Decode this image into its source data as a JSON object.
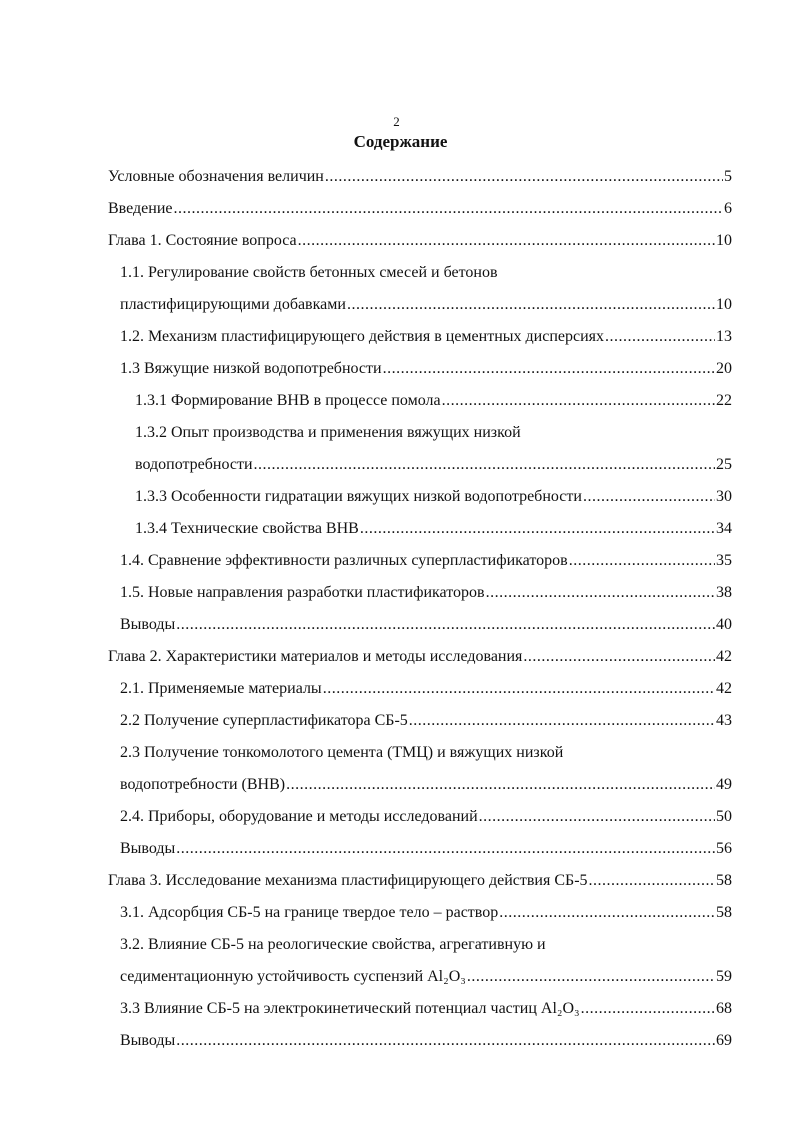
{
  "page_number": "2",
  "title": "Содержание",
  "entries": [
    {
      "level": 0,
      "lines": [
        "Условные обозначения величин"
      ],
      "page": "5"
    },
    {
      "level": 0,
      "lines": [
        "Введение"
      ],
      "page": "6"
    },
    {
      "level": 0,
      "lines": [
        "Глава 1. Состояние вопроса"
      ],
      "page": "10"
    },
    {
      "level": 1,
      "lines": [
        "1.1. Регулирование свойств бетонных смесей и бетонов",
        "пластифицирующими добавками"
      ],
      "page": "10"
    },
    {
      "level": 1,
      "lines": [
        "1.2. Механизм пластифицирующего действия в цементных дисперсиях"
      ],
      "page": "13"
    },
    {
      "level": 1,
      "lines": [
        "1.3 Вяжущие низкой водопотребности"
      ],
      "page": "20"
    },
    {
      "level": 2,
      "lines": [
        "1.3.1 Формирование ВНВ в процессе помола"
      ],
      "page": "22"
    },
    {
      "level": 2,
      "lines": [
        "1.3.2 Опыт производства и применения вяжущих низкой",
        "водопотребности"
      ],
      "page": "25"
    },
    {
      "level": 2,
      "lines": [
        "1.3.3 Особенности гидратации вяжущих низкой водопотребности"
      ],
      "page": "30"
    },
    {
      "level": 2,
      "lines": [
        "1.3.4 Технические свойства ВНВ"
      ],
      "page": "34"
    },
    {
      "level": 1,
      "lines": [
        "1.4. Сравнение эффективности различных суперпластификаторов"
      ],
      "page": "35"
    },
    {
      "level": 1,
      "lines": [
        "1.5. Новые направления разработки пластификаторов"
      ],
      "page": "38"
    },
    {
      "level": 1,
      "lines": [
        "Выводы"
      ],
      "page": "40"
    },
    {
      "level": 0,
      "lines": [
        "Глава 2. Характеристики материалов и методы исследования"
      ],
      "page": "42"
    },
    {
      "level": 1,
      "lines": [
        "2.1. Применяемые материалы"
      ],
      "page": "42"
    },
    {
      "level": 1,
      "lines": [
        "2.2 Получение суперпластификатора СБ-5"
      ],
      "page": "43"
    },
    {
      "level": 1,
      "lines": [
        "2.3 Получение тонкомолотого цемента (ТМЦ) и вяжущих низкой",
        "водопотребности (ВНВ)"
      ],
      "page": "49"
    },
    {
      "level": 1,
      "lines": [
        "2.4. Приборы, оборудование и методы исследований"
      ],
      "page": "50"
    },
    {
      "level": 1,
      "lines": [
        "Выводы"
      ],
      "page": "56"
    },
    {
      "level": 0,
      "lines": [
        "Глава 3. Исследование механизма пластифицирующего действия СБ-5"
      ],
      "page": "58"
    },
    {
      "level": 1,
      "lines": [
        "3.1. Адсорбция СБ-5 на границе твердое тело – раствор"
      ],
      "page": "58"
    },
    {
      "level": 1,
      "lines": [
        "3.2. Влияние СБ-5 на реологические свойства, агрегативную и",
        "седиментационную устойчивость суспензий Al₂O₃"
      ],
      "page": "59"
    },
    {
      "level": 1,
      "lines": [
        "3.3 Влияние СБ-5 на электрокинетический потенциал частиц Al₂O₃"
      ],
      "page": "68"
    },
    {
      "level": 1,
      "lines": [
        "Выводы"
      ],
      "page": "69"
    }
  ]
}
